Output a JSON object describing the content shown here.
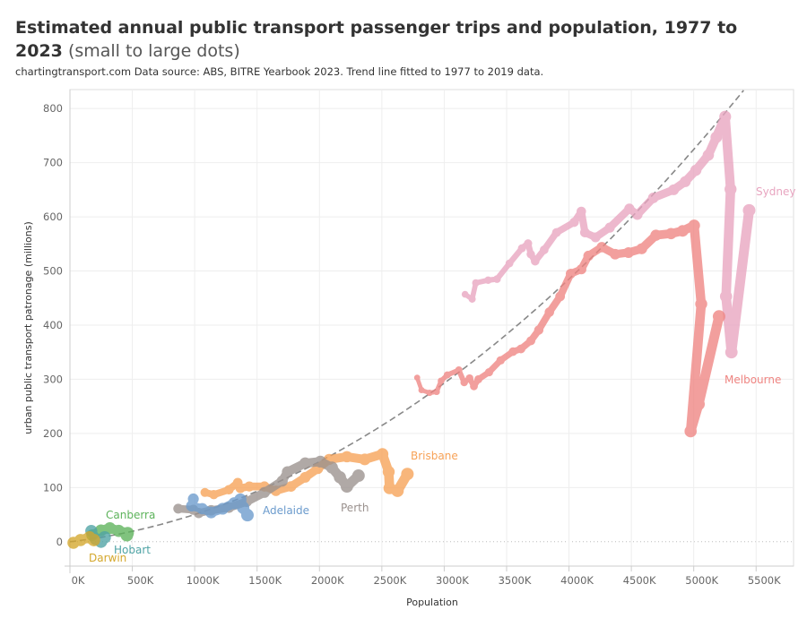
{
  "title": "Estimated annual public transport passenger trips and population, 1977 to 2023",
  "title_note": "(small to large dots)",
  "subtitle": "chartingtransport.com  Data source: ABS, BITRE Yearbook 2023. Trend line fitted to 1977 to 2019 data.",
  "chart_data": {
    "type": "scatter",
    "connected": true,
    "xlabel": "Population",
    "ylabel": "urban public transport patronage (millions)",
    "xlim": [
      0,
      5800
    ],
    "ylim": [
      -45,
      835
    ],
    "x_units": "thousands",
    "x_ticks": [
      "0K",
      "500K",
      "1000K",
      "1500K",
      "2000K",
      "2500K",
      "3000K",
      "3500K",
      "4000K",
      "4500K",
      "5000K",
      "5500K"
    ],
    "x_tick_values": [
      0,
      500,
      1000,
      1500,
      2000,
      2500,
      3000,
      3500,
      4000,
      4500,
      5000,
      5500
    ],
    "y_ticks": [
      "0",
      "100",
      "200",
      "300",
      "400",
      "500",
      "600",
      "700",
      "800"
    ],
    "y_tick_values": [
      0,
      100,
      200,
      300,
      400,
      500,
      600,
      700,
      800
    ],
    "grid": true,
    "trend_line": {
      "style": "dashed",
      "color": "#888888",
      "form": "quadratic",
      "a": 2.364e-05,
      "b": 0.0267
    },
    "series": [
      {
        "name": "Sydney",
        "color": "#e8a5c0",
        "points": [
          [
            3167,
            457
          ],
          [
            3224,
            448
          ],
          [
            3253,
            478
          ],
          [
            3352,
            483
          ],
          [
            3423,
            485
          ],
          [
            3523,
            514
          ],
          [
            3623,
            542
          ],
          [
            3672,
            551
          ],
          [
            3694,
            531
          ],
          [
            3729,
            518
          ],
          [
            3801,
            539
          ],
          [
            3900,
            571
          ],
          [
            4042,
            590
          ],
          [
            4099,
            610
          ],
          [
            4128,
            571
          ],
          [
            4213,
            562
          ],
          [
            4327,
            580
          ],
          [
            4484,
            615
          ],
          [
            4548,
            604
          ],
          [
            4676,
            635
          ],
          [
            4839,
            650
          ],
          [
            4932,
            665
          ],
          [
            5017,
            686
          ],
          [
            5117,
            714
          ],
          [
            5181,
            747
          ],
          [
            5252,
            785
          ],
          [
            5295,
            651
          ],
          [
            5259,
            453
          ],
          [
            5302,
            350
          ],
          [
            5444,
            612
          ]
        ]
      },
      {
        "name": "Melbourne",
        "color": "#ef8582",
        "points": [
          [
            2783,
            303
          ],
          [
            2818,
            280
          ],
          [
            2882,
            275
          ],
          [
            2939,
            277
          ],
          [
            2975,
            297
          ],
          [
            3025,
            308
          ],
          [
            3117,
            317
          ],
          [
            3160,
            294
          ],
          [
            3203,
            302
          ],
          [
            3238,
            287
          ],
          [
            3274,
            300
          ],
          [
            3359,
            313
          ],
          [
            3452,
            335
          ],
          [
            3551,
            351
          ],
          [
            3615,
            356
          ],
          [
            3694,
            371
          ],
          [
            3758,
            391
          ],
          [
            3843,
            424
          ],
          [
            3929,
            453
          ],
          [
            4014,
            495
          ],
          [
            4099,
            503
          ],
          [
            4156,
            528
          ],
          [
            4263,
            544
          ],
          [
            4370,
            531
          ],
          [
            4477,
            534
          ],
          [
            4583,
            541
          ],
          [
            4697,
            566
          ],
          [
            4818,
            569
          ],
          [
            4911,
            574
          ],
          [
            5003,
            584
          ],
          [
            5060,
            439
          ],
          [
            4975,
            204
          ],
          [
            5039,
            254
          ],
          [
            5203,
            416
          ]
        ]
      },
      {
        "name": "Brisbane",
        "color": "#f7a257",
        "points": [
          [
            1082,
            91
          ],
          [
            1153,
            87
          ],
          [
            1274,
            96
          ],
          [
            1345,
            109
          ],
          [
            1366,
            99
          ],
          [
            1438,
            102
          ],
          [
            1559,
            102
          ],
          [
            1651,
            94
          ],
          [
            1772,
            102
          ],
          [
            1886,
            119
          ],
          [
            1986,
            135
          ],
          [
            2078,
            152
          ],
          [
            2220,
            157
          ],
          [
            2363,
            152
          ],
          [
            2505,
            162
          ],
          [
            2555,
            129
          ],
          [
            2562,
            99
          ],
          [
            2626,
            94
          ],
          [
            2705,
            125
          ]
        ]
      },
      {
        "name": "Perth",
        "color": "#9a918e",
        "points": [
          [
            868,
            61
          ],
          [
            989,
            59
          ],
          [
            1032,
            53
          ],
          [
            1132,
            58
          ],
          [
            1274,
            63
          ],
          [
            1416,
            74
          ],
          [
            1559,
            91
          ],
          [
            1701,
            112
          ],
          [
            1744,
            129
          ],
          [
            1886,
            145
          ],
          [
            2007,
            148
          ],
          [
            2100,
            137
          ],
          [
            2164,
            119
          ],
          [
            2220,
            102
          ],
          [
            2313,
            122
          ]
        ]
      },
      {
        "name": "Adelaide",
        "color": "#6b9bcd",
        "points": [
          [
            989,
            79
          ],
          [
            975,
            66
          ],
          [
            1060,
            61
          ],
          [
            1132,
            54
          ],
          [
            1224,
            61
          ],
          [
            1317,
            71
          ],
          [
            1366,
            78
          ],
          [
            1388,
            63
          ],
          [
            1423,
            49
          ]
        ]
      },
      {
        "name": "Canberra",
        "color": "#5db35b",
        "points": [
          [
            178,
            12
          ],
          [
            249,
            21
          ],
          [
            320,
            25
          ],
          [
            391,
            20
          ],
          [
            463,
            16
          ],
          [
            456,
            12
          ]
        ]
      },
      {
        "name": "Hobart",
        "color": "#4fa3a5",
        "points": [
          [
            171,
            20
          ],
          [
            206,
            5
          ],
          [
            249,
            0
          ],
          [
            278,
            8
          ]
        ]
      },
      {
        "name": "Darwin",
        "color": "#d4a72c",
        "points": [
          [
            28,
            -2
          ],
          [
            85,
            3
          ],
          [
            157,
            8
          ],
          [
            192,
            3
          ]
        ]
      }
    ]
  }
}
